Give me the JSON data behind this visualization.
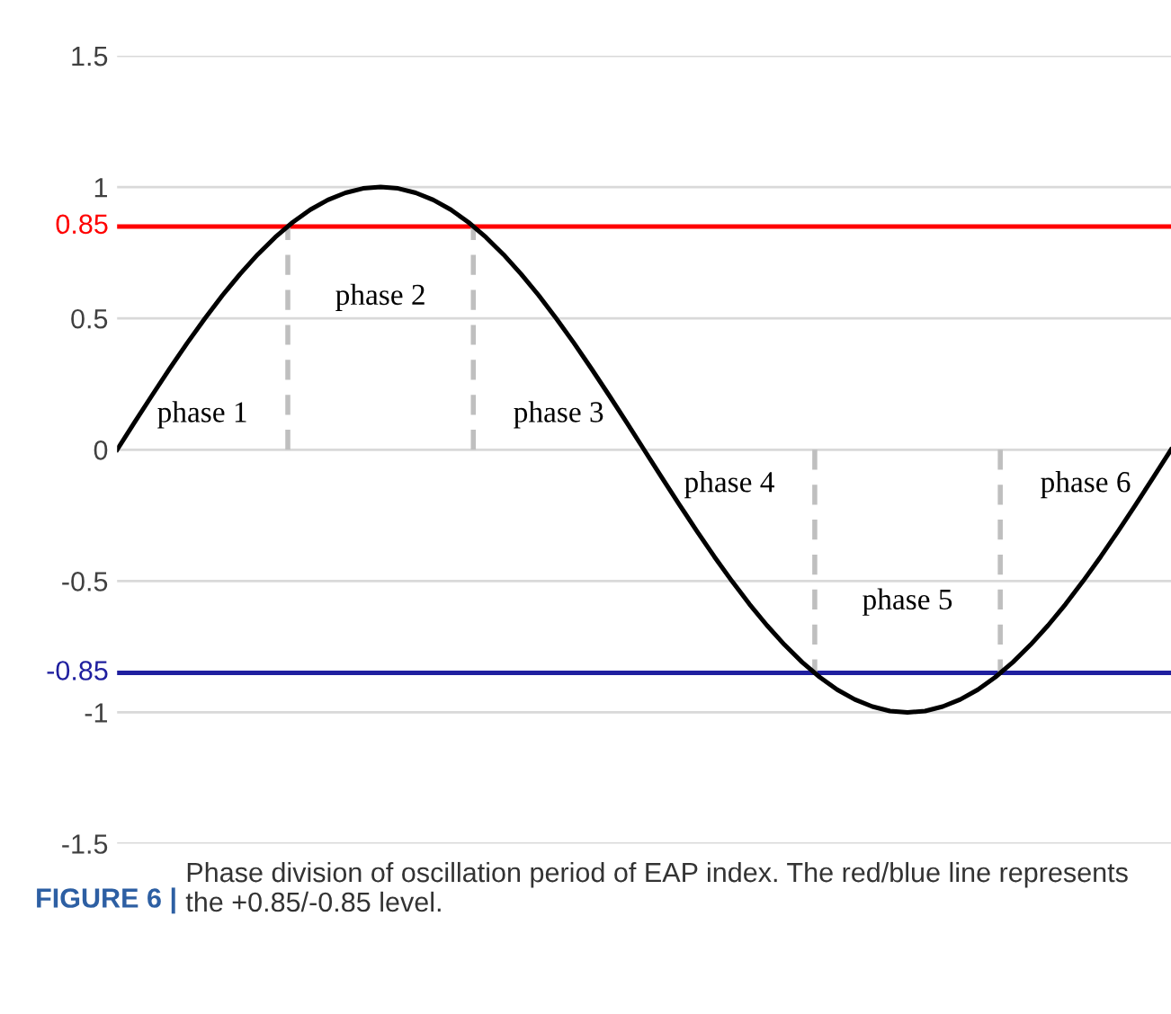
{
  "chart_data": {
    "type": "line",
    "categories": [
      null,
      null,
      null,
      null,
      null,
      null,
      null,
      null,
      null,
      null,
      null,
      null,
      null,
      null,
      null,
      null,
      null,
      null,
      null,
      null,
      null,
      null,
      null,
      null,
      null,
      null,
      null,
      null,
      null,
      null,
      null,
      null,
      null,
      null,
      null,
      null,
      null,
      null,
      null,
      null,
      null,
      null,
      null,
      null,
      null,
      null,
      null,
      null,
      null,
      null,
      null,
      null,
      null,
      null,
      null,
      null,
      null,
      null,
      null,
      null,
      null
    ],
    "series": [
      {
        "color": "#000000",
        "values": [
          0,
          0.105,
          0.208,
          0.309,
          0.407,
          0.5,
          0.588,
          0.669,
          0.743,
          0.809,
          0.866,
          0.914,
          0.951,
          0.978,
          0.995,
          1,
          0.995,
          0.978,
          0.951,
          0.914,
          0.866,
          0.809,
          0.743,
          0.669,
          0.588,
          0.5,
          0.407,
          0.309,
          0.208,
          0.105,
          0,
          -0.105,
          -0.208,
          -0.309,
          -0.407,
          -0.5,
          -0.588,
          -0.669,
          -0.743,
          -0.809,
          -0.866,
          -0.914,
          -0.951,
          -0.978,
          -0.995,
          -1,
          -0.995,
          -0.978,
          -0.951,
          -0.914,
          -0.866,
          -0.809,
          -0.743,
          -0.669,
          -0.588,
          -0.5,
          -0.407,
          -0.309,
          -0.208,
          -0.105,
          0
        ]
      }
    ],
    "ylim": [
      -1.5,
      1.5
    ],
    "yticks": [
      1.5,
      1,
      0.5,
      0,
      -0.5,
      -1,
      -1.5
    ],
    "grid": "y",
    "line_style": "solid",
    "marker": "none",
    "ref_lines": [
      {
        "axis": "y",
        "value": 0.85,
        "label": "0.85",
        "color": "#ff0000"
      },
      {
        "axis": "y",
        "value": -0.85,
        "label": "-0.85",
        "color": "#1f1f9f"
      }
    ],
    "annotations": [
      "phase 1",
      "phase 2",
      "phase 3",
      "phase 4",
      "phase 5",
      "phase 6",
      "FIGURE 6 |",
      "Phase division of oscillation period of EAP index. The red/blue line represents the +0.85/-0.85 level."
    ]
  }
}
